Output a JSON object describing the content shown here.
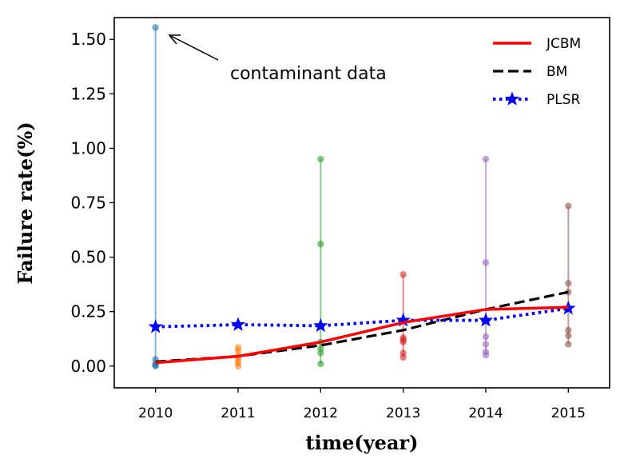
{
  "chart_data": {
    "type": "line",
    "xlabel": "time(year)",
    "ylabel": "Failure rate(%)",
    "xlim": [
      2009.5,
      2015.5
    ],
    "ylim": [
      -0.1,
      1.6
    ],
    "x_ticks": [
      2010,
      2011,
      2012,
      2013,
      2014,
      2015
    ],
    "y_ticks": [
      0.0,
      0.25,
      0.5,
      0.75,
      1.0,
      1.25,
      1.5
    ],
    "y_tick_labels": [
      "0.00",
      "0.25",
      "0.50",
      "0.75",
      "1.00",
      "1.25",
      "1.50"
    ],
    "grid": false,
    "legend_position": "top-right",
    "series": [
      {
        "name": "JCBM",
        "color": "#ff0000",
        "style": "solid",
        "x": [
          2010,
          2011,
          2012,
          2013,
          2014,
          2015
        ],
        "values": [
          0.015,
          0.045,
          0.11,
          0.2,
          0.26,
          0.27
        ]
      },
      {
        "name": "BM",
        "color": "#000000",
        "style": "dashed",
        "x": [
          2010,
          2011,
          2012,
          2013,
          2014,
          2015
        ],
        "values": [
          0.02,
          0.045,
          0.095,
          0.165,
          0.26,
          0.34
        ]
      },
      {
        "name": "PLSR",
        "color": "#0000ff",
        "style": "dotted",
        "marker": "star",
        "x": [
          2010,
          2011,
          2012,
          2013,
          2014,
          2015
        ],
        "values": [
          0.18,
          0.19,
          0.185,
          0.21,
          0.21,
          0.265
        ]
      }
    ],
    "scatter_groups": [
      {
        "x": 2010,
        "color": "#1f77b4",
        "values": [
          1.555,
          0.03,
          0.01,
          0.005,
          0.0
        ]
      },
      {
        "x": 2011,
        "color": "#ff7f0e",
        "values": [
          0.085,
          0.07,
          0.045,
          0.03,
          0.015,
          0.0
        ]
      },
      {
        "x": 2012,
        "color": "#2ca02c",
        "values": [
          0.95,
          0.56,
          0.11,
          0.08,
          0.06,
          0.01
        ]
      },
      {
        "x": 2013,
        "color": "#d62728",
        "values": [
          0.42,
          0.13,
          0.12,
          0.11,
          0.06,
          0.04
        ]
      },
      {
        "x": 2014,
        "color": "#9467bd",
        "values": [
          0.95,
          0.475,
          0.135,
          0.1,
          0.065,
          0.05
        ]
      },
      {
        "x": 2015,
        "color": "#8c564b",
        "values": [
          0.735,
          0.38,
          0.34,
          0.165,
          0.14,
          0.1
        ]
      }
    ],
    "annotation": {
      "text": "contaminant data",
      "points_to": {
        "x": 2010,
        "y": 1.555
      }
    }
  }
}
